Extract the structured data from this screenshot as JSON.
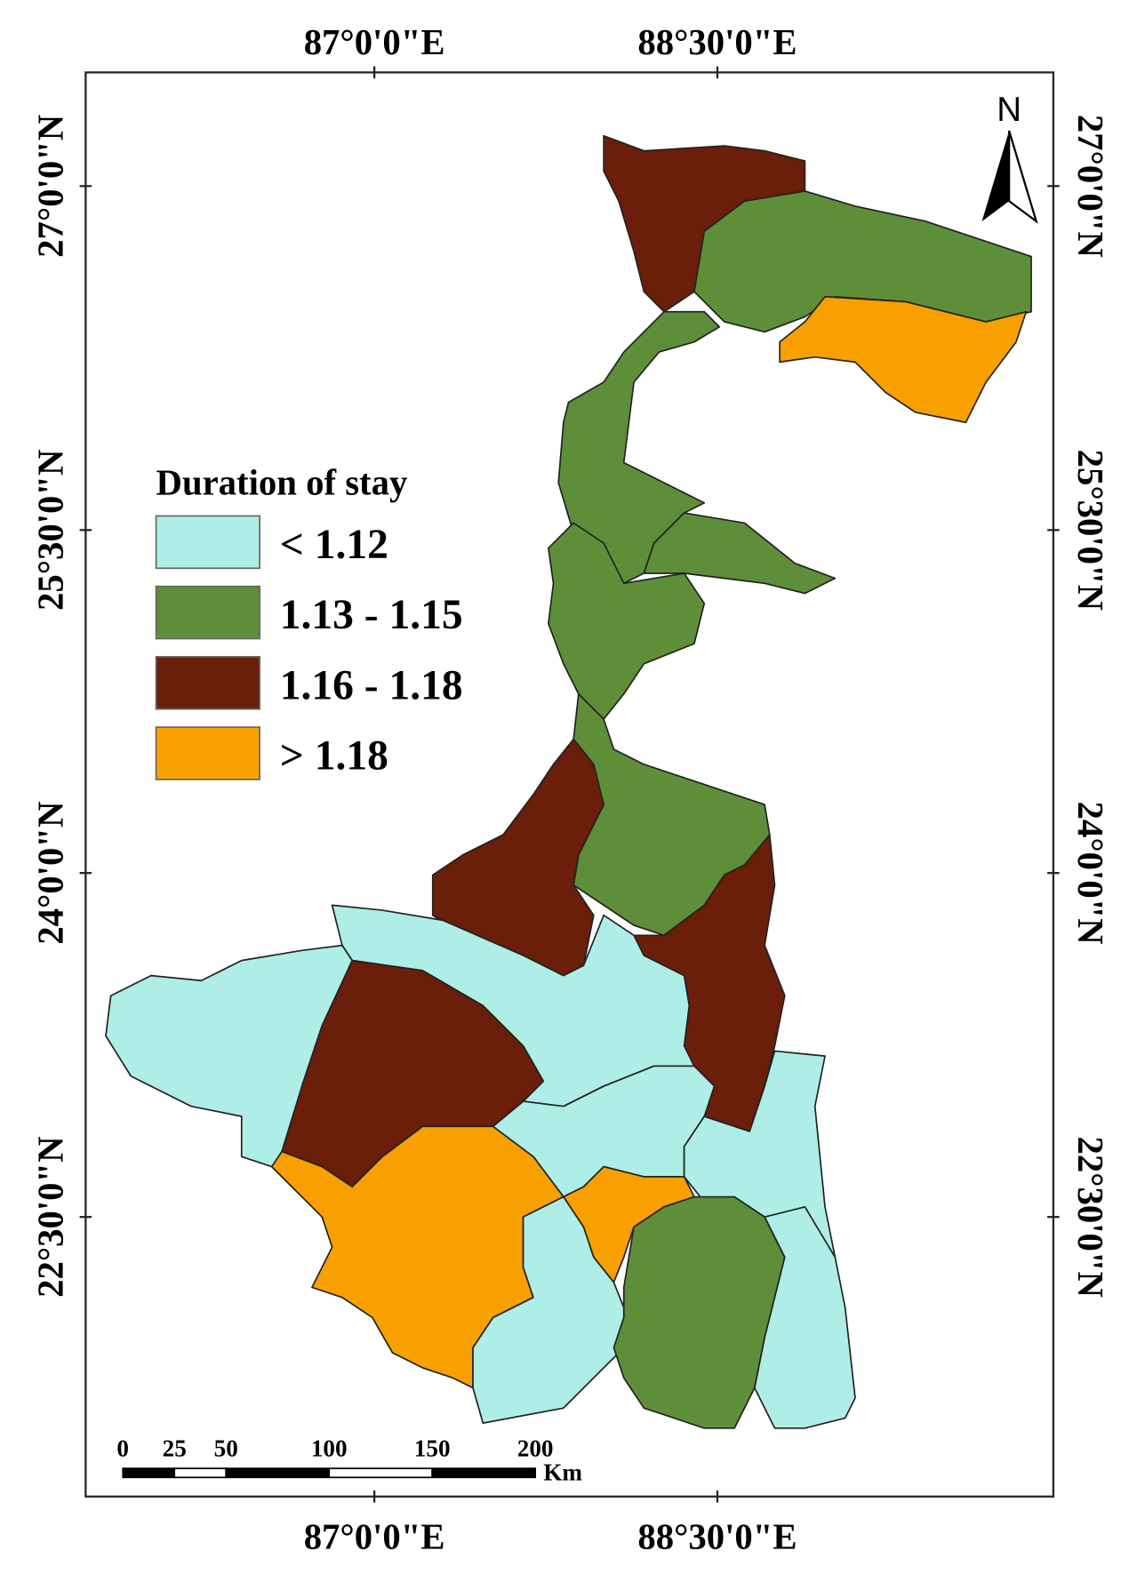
{
  "map": {
    "top_labels": [
      "87°0'0\"E",
      "88°30'0\"E"
    ],
    "bottom_labels": [
      "87°0'0\"E",
      "88°30'0\"E"
    ],
    "left_labels": [
      "27°0'0\"N",
      "25°30'0\"N",
      "24°0'0\"N",
      "22°30'0\"N"
    ],
    "right_labels": [
      "27°0'0\"N",
      "25°30'0\"N",
      "24°0'0\"N",
      "22°30'0\"N"
    ],
    "north": "N",
    "legend": {
      "title": "Duration of stay",
      "items": [
        {
          "label": "< 1.12",
          "color": "#aeeee6"
        },
        {
          "label": "1.13 - 1.15",
          "color": "#5f8e39"
        },
        {
          "label": "1.16 - 1.18",
          "color": "#6b1e0a"
        },
        {
          "label": "> 1.18",
          "color": "#f8a000"
        }
      ]
    },
    "scale_bar": {
      "ticks": [
        0,
        25,
        50,
        100,
        150,
        200
      ],
      "unit": "Km"
    }
  }
}
